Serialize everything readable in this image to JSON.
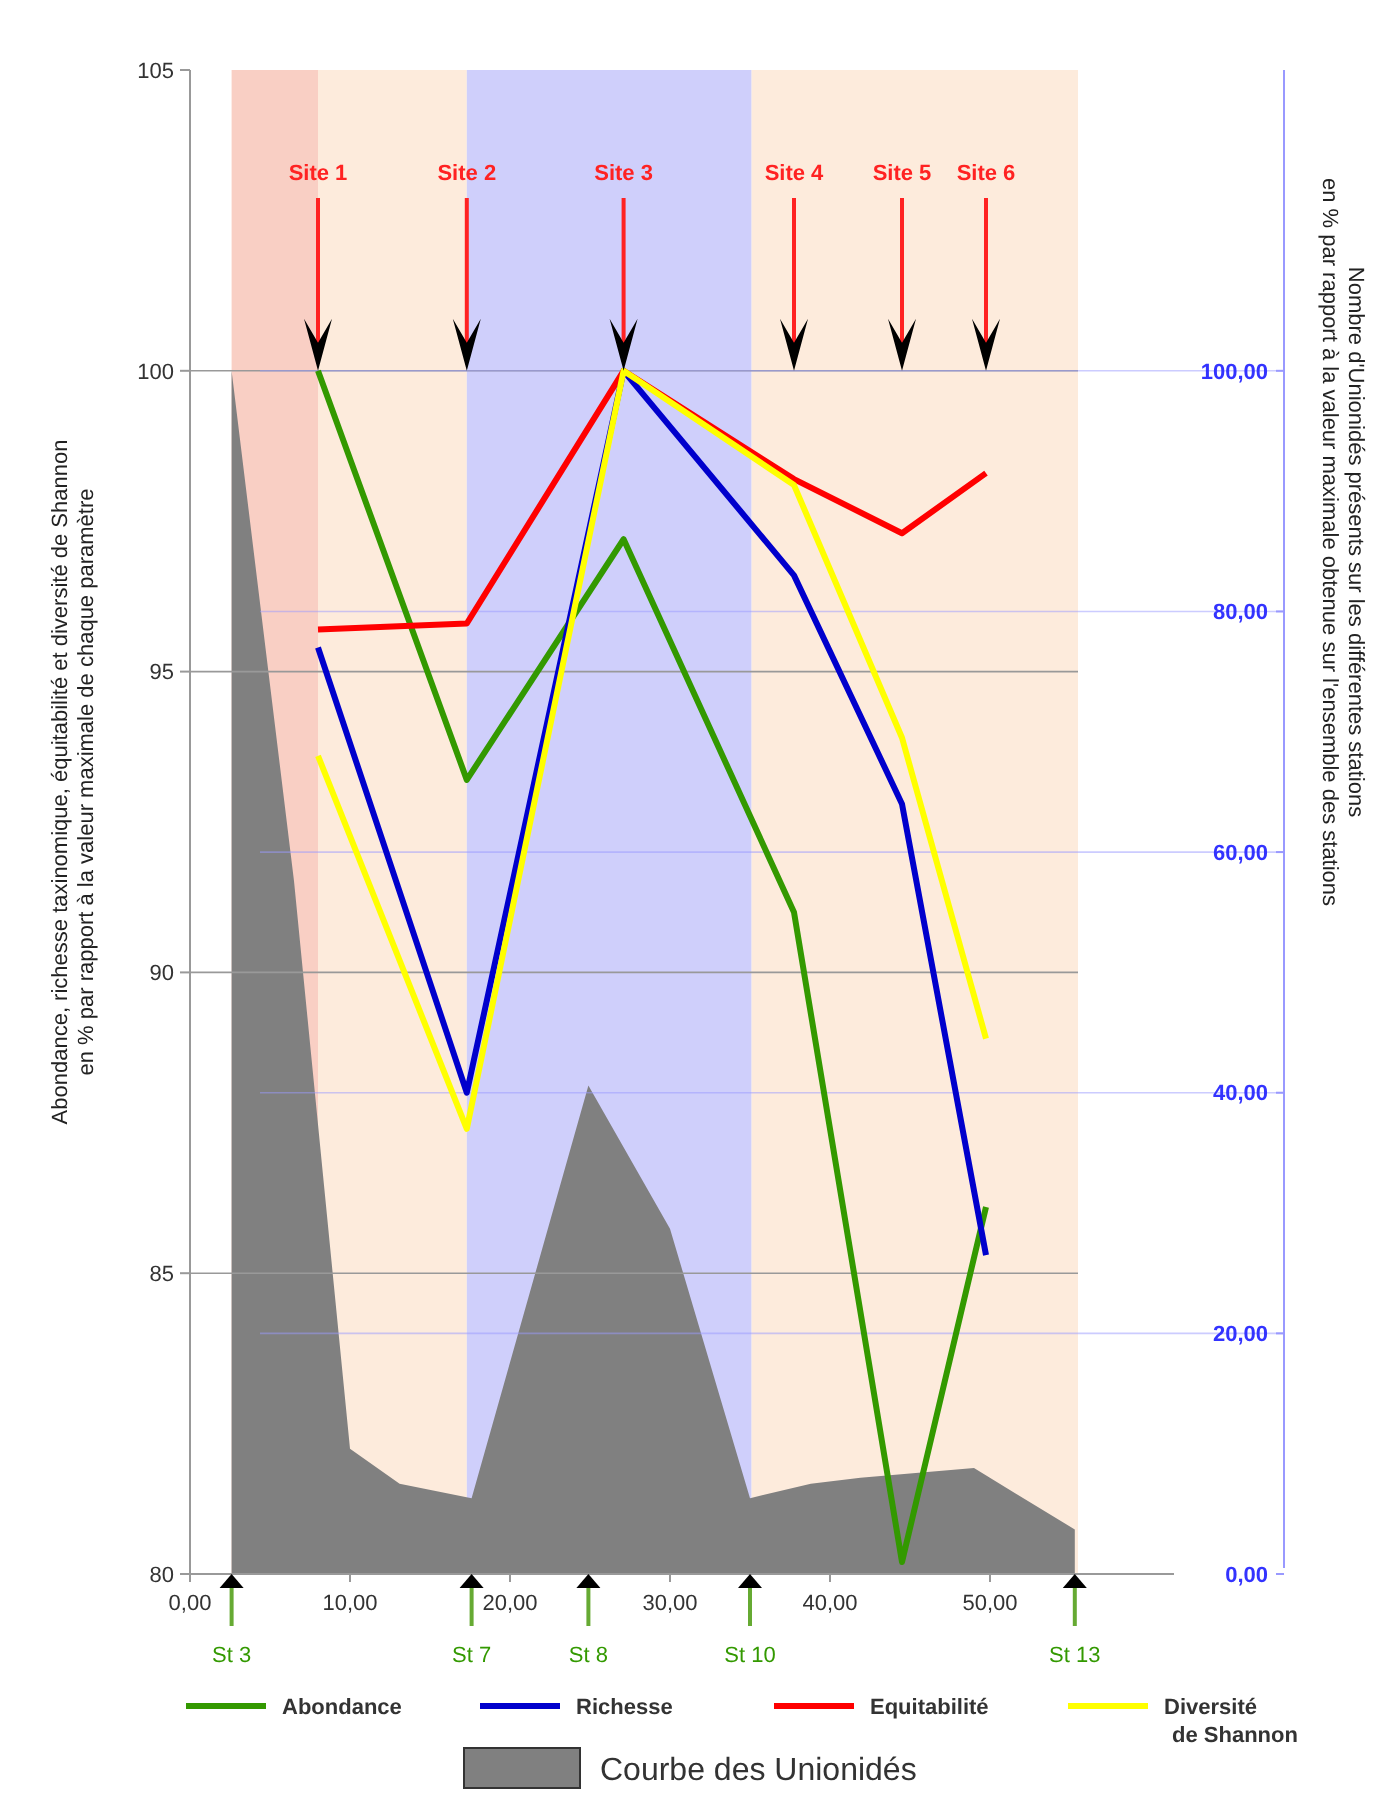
{
  "chart_data": {
    "type": "line",
    "ylabel": "Abondance, richesse taxinomique, équitabilité et diversité de Shannon\nen % par rapport à la valeur maximale de chaque paramètre",
    "y2label": "Nombre d'Unionidés présents sur les différentes stations\nen % par rapport à la valeur maximale obtenue sur l'ensemble des stations",
    "xlim": [
      0,
      61.5
    ],
    "xticks": [
      {
        "value": 0,
        "label": "0,00"
      },
      {
        "value": 10,
        "label": "10,00"
      },
      {
        "value": 20,
        "label": "20,00"
      },
      {
        "value": 30,
        "label": "30,00"
      },
      {
        "value": 40,
        "label": "40,00"
      },
      {
        "value": 50,
        "label": "50,00"
      }
    ],
    "ylim": [
      80,
      105
    ],
    "yticks": [
      80,
      85,
      90,
      95,
      100,
      105
    ],
    "y2lim": [
      0,
      125
    ],
    "y2ticks": [
      {
        "value": 0,
        "label": "0,00"
      },
      {
        "value": 20,
        "label": "20,00"
      },
      {
        "value": 40,
        "label": "40,00"
      },
      {
        "value": 60,
        "label": "60,00"
      },
      {
        "value": 80,
        "label": "80,00"
      },
      {
        "value": 100,
        "label": "100,00"
      }
    ],
    "grid": "y",
    "legend": "bottom",
    "marker": "none",
    "line_style": "solid",
    "bands": [
      {
        "axis": "x",
        "from": 2.6,
        "to": 8.0,
        "color": "#f9cfc4"
      },
      {
        "axis": "x",
        "from": 8.0,
        "to": 17.3,
        "color": "#fdebdc"
      },
      {
        "axis": "x",
        "from": 17.3,
        "to": 35.1,
        "color": "#cfcffb"
      },
      {
        "axis": "x",
        "from": 35.1,
        "to": 55.5,
        "color": "#fdebdc"
      }
    ],
    "series": [
      {
        "name": "Courbe des Unionidés",
        "type": "area",
        "axis": "y2",
        "color": "#808080",
        "x": [
          2.6,
          6.5,
          10.0,
          13.1,
          17.6,
          24.9,
          30.0,
          35.0,
          38.8,
          41.9,
          49.0,
          55.3
        ],
        "values": [
          100,
          57.6,
          10.4,
          7.5,
          6.3,
          40.6,
          28.7,
          6.3,
          7.5,
          8.0,
          8.8,
          3.7
        ]
      },
      {
        "name": "Abondance",
        "color": "#339900",
        "x": [
          8.0,
          17.3,
          27.1,
          37.75,
          44.5,
          49.75
        ],
        "values": [
          100,
          93.2,
          97.2,
          91.0,
          80.2,
          86.1
        ]
      },
      {
        "name": "Richesse",
        "color": "#0000cc",
        "x": [
          8.0,
          17.3,
          27.1,
          37.75,
          44.5,
          49.75
        ],
        "values": [
          95.4,
          88.0,
          100,
          96.6,
          92.8,
          85.3
        ]
      },
      {
        "name": "Equitabilité",
        "color": "#ff0000",
        "x": [
          8.0,
          17.3,
          27.1,
          37.75,
          44.5,
          49.75
        ],
        "values": [
          95.7,
          95.8,
          100,
          98.2,
          97.3,
          98.3
        ]
      },
      {
        "name": "Diversité de Shannon",
        "color": "#ffff00",
        "x": [
          8.0,
          17.3,
          27.1,
          37.75,
          44.5,
          49.75
        ],
        "values": [
          93.6,
          87.4,
          100,
          98.1,
          93.9,
          88.9
        ]
      }
    ],
    "annotations": [
      {
        "text": "Site 1",
        "x": 8.0
      },
      {
        "text": "Site 2",
        "x": 17.3
      },
      {
        "text": "Site 3",
        "x": 27.1
      },
      {
        "text": "Site 4",
        "x": 37.75
      },
      {
        "text": "Site 5",
        "x": 44.5
      },
      {
        "text": "Site 6",
        "x": 49.75
      },
      {
        "text": "St 3",
        "x": 2.6,
        "y": 80
      },
      {
        "text": "St 7",
        "x": 17.6,
        "y": 80
      },
      {
        "text": "St 8",
        "x": 24.9,
        "y": 80
      },
      {
        "text": "St 10",
        "x": 35.0,
        "y": 80
      },
      {
        "text": "St 13",
        "x": 55.3,
        "y": 80
      }
    ]
  }
}
